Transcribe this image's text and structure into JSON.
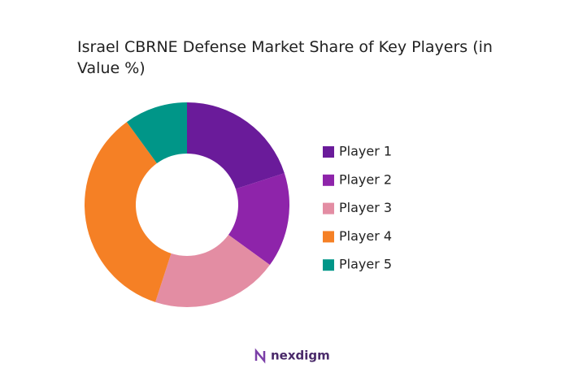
{
  "chart_data": {
    "type": "pie",
    "title": "Israel CBRNE Defense Market Share of Key Players (in Value %)",
    "categories": [
      "Player 1",
      "Player 2",
      "Player 3",
      "Player 4",
      "Player 5"
    ],
    "values": [
      20,
      15,
      20,
      35,
      10
    ],
    "colors": [
      "#6a1b9a",
      "#8e24aa",
      "#e38da3",
      "#f58025",
      "#009688"
    ],
    "donut": true,
    "legend": "right"
  },
  "footer_logo": "nexdigm"
}
